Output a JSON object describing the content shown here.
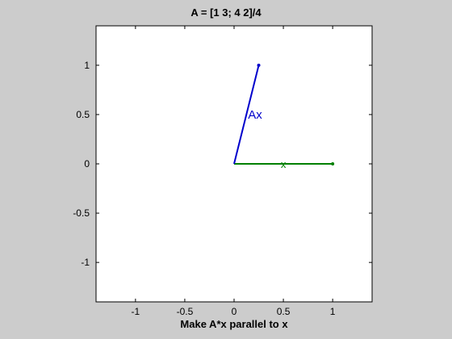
{
  "window": {
    "title": "A = [1 3; 4 2]/4",
    "xlabel": "Make A*x parallel to x",
    "background_color": "#cccccc",
    "axes_color": "#ffffff"
  },
  "chart_data": {
    "type": "line",
    "title": "A = [1 3; 4 2]/4",
    "xlabel": "Make A*x parallel to x",
    "ylabel": "",
    "xlim": [
      -1.4,
      1.4
    ],
    "ylim": [
      -1.4,
      1.4
    ],
    "xticks": [
      -1,
      -0.5,
      0,
      0.5,
      1
    ],
    "yticks": [
      -1,
      -0.5,
      0,
      0.5,
      1
    ],
    "xtick_labels": [
      "-1",
      "-0.5",
      "0",
      "0.5",
      "1"
    ],
    "ytick_labels": [
      "-1",
      "-0.5",
      "0",
      "0.5",
      "1"
    ],
    "grid": false,
    "series": [
      {
        "name": "x",
        "color": "#008000",
        "x": [
          0,
          1
        ],
        "y": [
          0,
          0
        ]
      },
      {
        "name": "Ax",
        "color": "#0000cc",
        "x": [
          0,
          0.25
        ],
        "y": [
          0,
          1
        ]
      }
    ]
  }
}
